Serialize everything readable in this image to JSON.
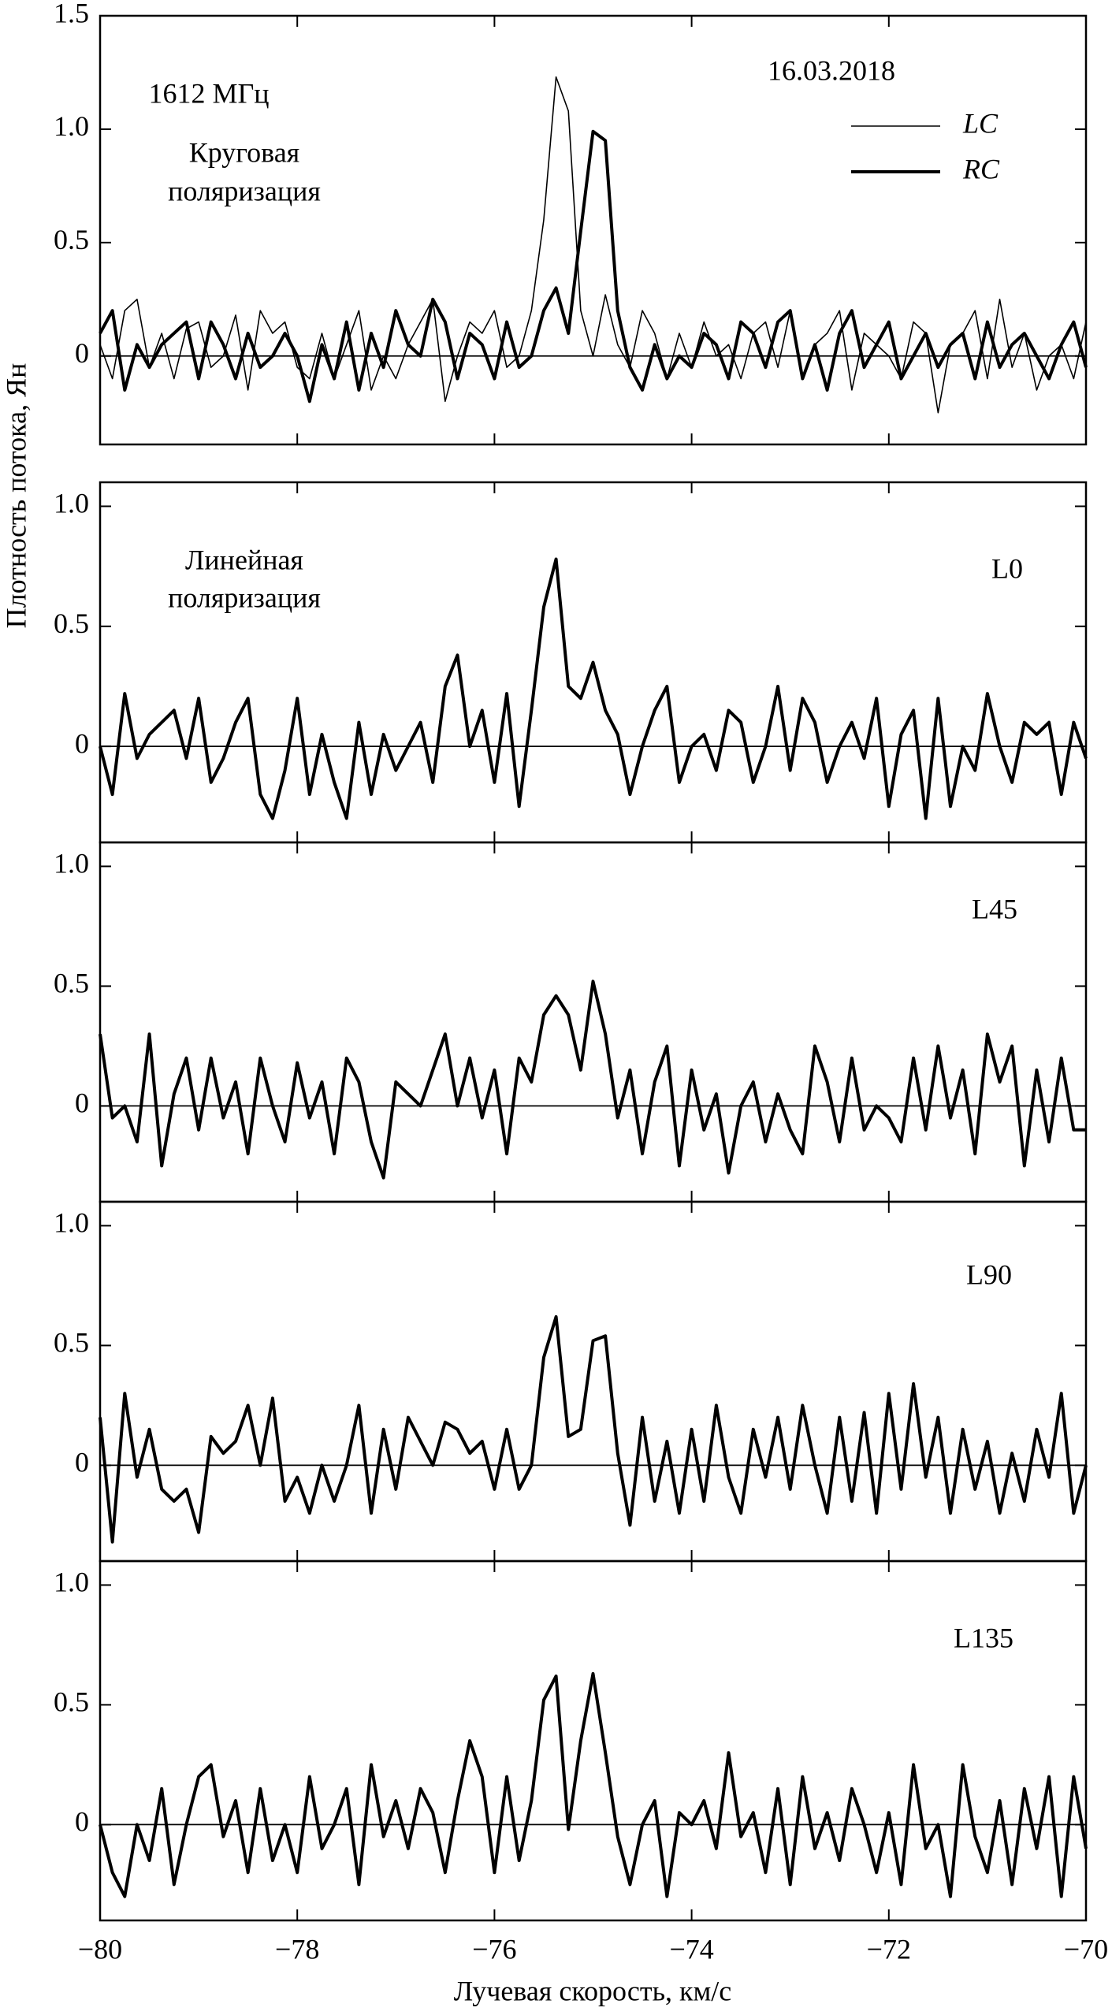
{
  "chart_data": [
    {
      "type": "line",
      "ylabel": "Плотность потока, Ян",
      "annotations": [
        "1612 МГц",
        "Круговая",
        "поляризация",
        "16.03.2018"
      ],
      "xlim": [
        -80,
        -70
      ],
      "ylim": [
        -0.39,
        1.5
      ],
      "yticks": [
        0,
        0.5,
        {
          "value": 1,
          "label": "1.0"
        },
        1.5
      ],
      "x": [
        -80,
        -79.875,
        -79.75,
        -79.625,
        -79.5,
        -79.375,
        -79.25,
        -79.125,
        -79,
        -78.875,
        -78.75,
        -78.625,
        -78.5,
        -78.375,
        -78.25,
        -78.125,
        -78,
        -77.875,
        -77.75,
        -77.625,
        -77.5,
        -77.375,
        -77.25,
        -77.125,
        -77,
        -76.875,
        -76.75,
        -76.625,
        -76.5,
        -76.375,
        -76.25,
        -76.125,
        -76,
        -75.875,
        -75.75,
        -75.625,
        -75.5,
        -75.375,
        -75.25,
        -75.125,
        -75,
        -74.875,
        -74.75,
        -74.625,
        -74.5,
        -74.375,
        -74.25,
        -74.125,
        -74,
        -73.875,
        -73.75,
        -73.625,
        -73.5,
        -73.375,
        -73.25,
        -73.125,
        -73,
        -72.875,
        -72.75,
        -72.625,
        -72.5,
        -72.375,
        -72.25,
        -72.125,
        -72,
        -71.875,
        -71.75,
        -71.625,
        -71.5,
        -71.375,
        -71.25,
        -71.125,
        -71,
        -70.875,
        -70.75,
        -70.625,
        -70.5,
        -70.375,
        -70.25,
        -70.125,
        -70
      ],
      "series": [
        {
          "name": "LC",
          "color": "#000000",
          "linewidth": 1.6,
          "values": [
            0.05,
            -0.1,
            0.2,
            0.25,
            -0.05,
            0.1,
            -0.1,
            0.12,
            0.15,
            -0.05,
            0.0,
            0.18,
            -0.15,
            0.2,
            0.1,
            0.15,
            -0.05,
            -0.1,
            0.1,
            -0.1,
            0.05,
            0.2,
            -0.15,
            0.0,
            -0.1,
            0.05,
            0.15,
            0.25,
            -0.2,
            0.0,
            0.15,
            0.1,
            0.2,
            -0.05,
            0.0,
            0.2,
            0.6,
            1.23,
            1.08,
            0.2,
            0.0,
            0.27,
            0.05,
            -0.05,
            0.2,
            0.1,
            -0.1,
            0.1,
            -0.05,
            0.15,
            0.0,
            0.05,
            -0.1,
            0.1,
            0.15,
            -0.05,
            0.2,
            -0.1,
            0.05,
            0.1,
            0.2,
            -0.15,
            0.1,
            0.05,
            0.0,
            -0.1,
            0.15,
            0.1,
            -0.25,
            0.05,
            0.1,
            0.2,
            -0.1,
            0.25,
            -0.05,
            0.1,
            -0.15,
            0.0,
            0.05,
            -0.1,
            0.15
          ]
        },
        {
          "name": "RC",
          "color": "#000000",
          "linewidth": 4,
          "values": [
            0.1,
            0.2,
            -0.15,
            0.05,
            -0.05,
            0.05,
            0.1,
            0.15,
            -0.1,
            0.15,
            0.05,
            -0.1,
            0.1,
            -0.05,
            0.0,
            0.1,
            0.0,
            -0.2,
            0.05,
            -0.1,
            0.15,
            -0.15,
            0.1,
            -0.05,
            0.2,
            0.05,
            0.0,
            0.25,
            0.15,
            -0.1,
            0.1,
            0.05,
            -0.1,
            0.15,
            -0.05,
            0.0,
            0.2,
            0.3,
            0.1,
            0.55,
            0.99,
            0.95,
            0.2,
            -0.05,
            -0.15,
            0.05,
            -0.1,
            0.0,
            -0.05,
            0.1,
            0.05,
            -0.1,
            0.15,
            0.1,
            -0.05,
            0.15,
            0.2,
            -0.1,
            0.05,
            -0.15,
            0.1,
            0.2,
            -0.05,
            0.05,
            0.15,
            -0.1,
            0.0,
            0.1,
            -0.05,
            0.05,
            0.1,
            -0.1,
            0.15,
            -0.05,
            0.05,
            0.1,
            0.0,
            -0.1,
            0.05,
            0.15,
            -0.05
          ]
        }
      ]
    },
    {
      "type": "line",
      "annotations": [
        "Линейная",
        "поляризация",
        "L0"
      ],
      "xlim": [
        -80,
        -70
      ],
      "ylim": [
        -0.4,
        1.1
      ],
      "yticks": [
        0,
        0.5,
        {
          "value": 1,
          "label": "1.0"
        }
      ],
      "x": [
        -80,
        -79.875,
        -79.75,
        -79.625,
        -79.5,
        -79.375,
        -79.25,
        -79.125,
        -79,
        -78.875,
        -78.75,
        -78.625,
        -78.5,
        -78.375,
        -78.25,
        -78.125,
        -78,
        -77.875,
        -77.75,
        -77.625,
        -77.5,
        -77.375,
        -77.25,
        -77.125,
        -77,
        -76.875,
        -76.75,
        -76.625,
        -76.5,
        -76.375,
        -76.25,
        -76.125,
        -76,
        -75.875,
        -75.75,
        -75.625,
        -75.5,
        -75.375,
        -75.25,
        -75.125,
        -75,
        -74.875,
        -74.75,
        -74.625,
        -74.5,
        -74.375,
        -74.25,
        -74.125,
        -74,
        -73.875,
        -73.75,
        -73.625,
        -73.5,
        -73.375,
        -73.25,
        -73.125,
        -73,
        -72.875,
        -72.75,
        -72.625,
        -72.5,
        -72.375,
        -72.25,
        -72.125,
        -72,
        -71.875,
        -71.75,
        -71.625,
        -71.5,
        -71.375,
        -71.25,
        -71.125,
        -71,
        -70.875,
        -70.75,
        -70.625,
        -70.5,
        -70.375,
        -70.25,
        -70.125,
        -70
      ],
      "series": [
        {
          "color": "#000000",
          "linewidth": 4,
          "values": [
            0.0,
            -0.2,
            0.22,
            -0.05,
            0.05,
            0.1,
            0.15,
            -0.05,
            0.2,
            -0.15,
            -0.05,
            0.1,
            0.2,
            -0.2,
            -0.3,
            -0.1,
            0.2,
            -0.2,
            0.05,
            -0.15,
            -0.3,
            0.1,
            -0.2,
            0.05,
            -0.1,
            0.0,
            0.1,
            -0.15,
            0.25,
            0.38,
            0.0,
            0.15,
            -0.15,
            0.22,
            -0.25,
            0.15,
            0.58,
            0.78,
            0.25,
            0.2,
            0.35,
            0.15,
            0.05,
            -0.2,
            0.0,
            0.15,
            0.25,
            -0.15,
            0.0,
            0.05,
            -0.1,
            0.15,
            0.1,
            -0.15,
            0.0,
            0.25,
            -0.1,
            0.2,
            0.1,
            -0.15,
            0.0,
            0.1,
            -0.05,
            0.2,
            -0.25,
            0.05,
            0.15,
            -0.3,
            0.2,
            -0.25,
            0.0,
            -0.1,
            0.22,
            0.0,
            -0.15,
            0.1,
            0.05,
            0.1,
            -0.2,
            0.1,
            -0.05
          ]
        }
      ]
    },
    {
      "type": "line",
      "annotations": [
        "L45"
      ],
      "xlim": [
        -80,
        -70
      ],
      "ylim": [
        -0.4,
        1.1
      ],
      "yticks": [
        0,
        0.5,
        {
          "value": 1,
          "label": "1.0"
        }
      ],
      "x": [
        -80,
        -79.875,
        -79.75,
        -79.625,
        -79.5,
        -79.375,
        -79.25,
        -79.125,
        -79,
        -78.875,
        -78.75,
        -78.625,
        -78.5,
        -78.375,
        -78.25,
        -78.125,
        -78,
        -77.875,
        -77.75,
        -77.625,
        -77.5,
        -77.375,
        -77.25,
        -77.125,
        -77,
        -76.875,
        -76.75,
        -76.625,
        -76.5,
        -76.375,
        -76.25,
        -76.125,
        -76,
        -75.875,
        -75.75,
        -75.625,
        -75.5,
        -75.375,
        -75.25,
        -75.125,
        -75,
        -74.875,
        -74.75,
        -74.625,
        -74.5,
        -74.375,
        -74.25,
        -74.125,
        -74,
        -73.875,
        -73.75,
        -73.625,
        -73.5,
        -73.375,
        -73.25,
        -73.125,
        -73,
        -72.875,
        -72.75,
        -72.625,
        -72.5,
        -72.375,
        -72.25,
        -72.125,
        -72,
        -71.875,
        -71.75,
        -71.625,
        -71.5,
        -71.375,
        -71.25,
        -71.125,
        -71,
        -70.875,
        -70.75,
        -70.625,
        -70.5,
        -70.375,
        -70.25,
        -70.125,
        -70
      ],
      "series": [
        {
          "color": "#000000",
          "linewidth": 4,
          "values": [
            0.3,
            -0.05,
            0.0,
            -0.15,
            0.3,
            -0.25,
            0.05,
            0.2,
            -0.1,
            0.2,
            -0.05,
            0.1,
            -0.2,
            0.2,
            0.0,
            -0.15,
            0.18,
            -0.05,
            0.1,
            -0.2,
            0.2,
            0.1,
            -0.15,
            -0.3,
            0.1,
            0.05,
            0.0,
            0.15,
            0.3,
            0.0,
            0.2,
            -0.05,
            0.15,
            -0.2,
            0.2,
            0.1,
            0.38,
            0.46,
            0.38,
            0.15,
            0.52,
            0.3,
            -0.05,
            0.15,
            -0.2,
            0.1,
            0.25,
            -0.25,
            0.15,
            -0.1,
            0.05,
            -0.28,
            0.0,
            0.1,
            -0.15,
            0.05,
            -0.1,
            -0.2,
            0.25,
            0.1,
            -0.15,
            0.2,
            -0.1,
            0.0,
            -0.05,
            -0.15,
            0.2,
            -0.1,
            0.25,
            -0.05,
            0.15,
            -0.2,
            0.3,
            0.1,
            0.25,
            -0.25,
            0.15,
            -0.15,
            0.2,
            -0.1,
            -0.1
          ]
        }
      ]
    },
    {
      "type": "line",
      "annotations": [
        "L90"
      ],
      "xlim": [
        -80,
        -70
      ],
      "ylim": [
        -0.4,
        1.1
      ],
      "yticks": [
        0,
        0.5,
        {
          "value": 1,
          "label": "1.0"
        }
      ],
      "x": [
        -80,
        -79.875,
        -79.75,
        -79.625,
        -79.5,
        -79.375,
        -79.25,
        -79.125,
        -79,
        -78.875,
        -78.75,
        -78.625,
        -78.5,
        -78.375,
        -78.25,
        -78.125,
        -78,
        -77.875,
        -77.75,
        -77.625,
        -77.5,
        -77.375,
        -77.25,
        -77.125,
        -77,
        -76.875,
        -76.75,
        -76.625,
        -76.5,
        -76.375,
        -76.25,
        -76.125,
        -76,
        -75.875,
        -75.75,
        -75.625,
        -75.5,
        -75.375,
        -75.25,
        -75.125,
        -75,
        -74.875,
        -74.75,
        -74.625,
        -74.5,
        -74.375,
        -74.25,
        -74.125,
        -74,
        -73.875,
        -73.75,
        -73.625,
        -73.5,
        -73.375,
        -73.25,
        -73.125,
        -73,
        -72.875,
        -72.75,
        -72.625,
        -72.5,
        -72.375,
        -72.25,
        -72.125,
        -72,
        -71.875,
        -71.75,
        -71.625,
        -71.5,
        -71.375,
        -71.25,
        -71.125,
        -71,
        -70.875,
        -70.75,
        -70.625,
        -70.5,
        -70.375,
        -70.25,
        -70.125,
        -70
      ],
      "series": [
        {
          "color": "#000000",
          "linewidth": 4,
          "values": [
            0.2,
            -0.32,
            0.3,
            -0.05,
            0.15,
            -0.1,
            -0.15,
            -0.1,
            -0.28,
            0.12,
            0.05,
            0.1,
            0.25,
            0.0,
            0.28,
            -0.15,
            -0.05,
            -0.2,
            0.0,
            -0.15,
            0.0,
            0.25,
            -0.2,
            0.15,
            -0.1,
            0.2,
            0.1,
            0.0,
            0.18,
            0.15,
            0.05,
            0.1,
            -0.1,
            0.15,
            -0.1,
            0.0,
            0.45,
            0.62,
            0.12,
            0.15,
            0.52,
            0.54,
            0.05,
            -0.25,
            0.2,
            -0.15,
            0.1,
            -0.2,
            0.15,
            -0.15,
            0.25,
            -0.05,
            -0.2,
            0.15,
            -0.05,
            0.2,
            -0.1,
            0.25,
            0.0,
            -0.2,
            0.2,
            -0.15,
            0.22,
            -0.2,
            0.3,
            -0.1,
            0.34,
            -0.05,
            0.2,
            -0.2,
            0.15,
            -0.1,
            0.1,
            -0.2,
            0.05,
            -0.15,
            0.15,
            -0.05,
            0.3,
            -0.2,
            0.0
          ]
        }
      ]
    },
    {
      "type": "line",
      "xlabel": "Лучевая скорость, км/с",
      "annotations": [
        "L135"
      ],
      "xlim": [
        -80,
        -70
      ],
      "ylim": [
        -0.4,
        1.1
      ],
      "yticks": [
        0,
        0.5,
        {
          "value": 1,
          "label": "1.0"
        }
      ],
      "xticks": [
        {
          "value": -80,
          "label": "−80"
        },
        {
          "value": -78,
          "label": "−78"
        },
        {
          "value": -76,
          "label": "−76"
        },
        {
          "value": -74,
          "label": "−74"
        },
        {
          "value": -72,
          "label": "−72"
        },
        {
          "value": -70,
          "label": "−70"
        }
      ],
      "x": [
        -80,
        -79.875,
        -79.75,
        -79.625,
        -79.5,
        -79.375,
        -79.25,
        -79.125,
        -79,
        -78.875,
        -78.75,
        -78.625,
        -78.5,
        -78.375,
        -78.25,
        -78.125,
        -78,
        -77.875,
        -77.75,
        -77.625,
        -77.5,
        -77.375,
        -77.25,
        -77.125,
        -77,
        -76.875,
        -76.75,
        -76.625,
        -76.5,
        -76.375,
        -76.25,
        -76.125,
        -76,
        -75.875,
        -75.75,
        -75.625,
        -75.5,
        -75.375,
        -75.25,
        -75.125,
        -75,
        -74.875,
        -74.75,
        -74.625,
        -74.5,
        -74.375,
        -74.25,
        -74.125,
        -74,
        -73.875,
        -73.75,
        -73.625,
        -73.5,
        -73.375,
        -73.25,
        -73.125,
        -73,
        -72.875,
        -72.75,
        -72.625,
        -72.5,
        -72.375,
        -72.25,
        -72.125,
        -72,
        -71.875,
        -71.75,
        -71.625,
        -71.5,
        -71.375,
        -71.25,
        -71.125,
        -71,
        -70.875,
        -70.75,
        -70.625,
        -70.5,
        -70.375,
        -70.25,
        -70.125,
        -70
      ],
      "series": [
        {
          "color": "#000000",
          "linewidth": 4,
          "values": [
            0.0,
            -0.2,
            -0.3,
            0.0,
            -0.15,
            0.15,
            -0.25,
            0.0,
            0.2,
            0.25,
            -0.05,
            0.1,
            -0.2,
            0.15,
            -0.15,
            0.0,
            -0.2,
            0.2,
            -0.1,
            0.0,
            0.15,
            -0.25,
            0.25,
            -0.05,
            0.1,
            -0.1,
            0.15,
            0.05,
            -0.2,
            0.1,
            0.35,
            0.2,
            -0.2,
            0.2,
            -0.15,
            0.1,
            0.52,
            0.62,
            -0.02,
            0.35,
            0.63,
            0.3,
            -0.05,
            -0.25,
            0.0,
            0.1,
            -0.3,
            0.05,
            0.0,
            0.1,
            -0.1,
            0.3,
            -0.05,
            0.05,
            -0.2,
            0.15,
            -0.25,
            0.2,
            -0.1,
            0.05,
            -0.15,
            0.15,
            0.0,
            -0.2,
            0.05,
            -0.25,
            0.25,
            -0.1,
            0.0,
            -0.3,
            0.25,
            -0.05,
            -0.2,
            0.1,
            -0.25,
            0.15,
            -0.1,
            0.2,
            -0.3,
            0.2,
            -0.1
          ]
        }
      ]
    }
  ]
}
